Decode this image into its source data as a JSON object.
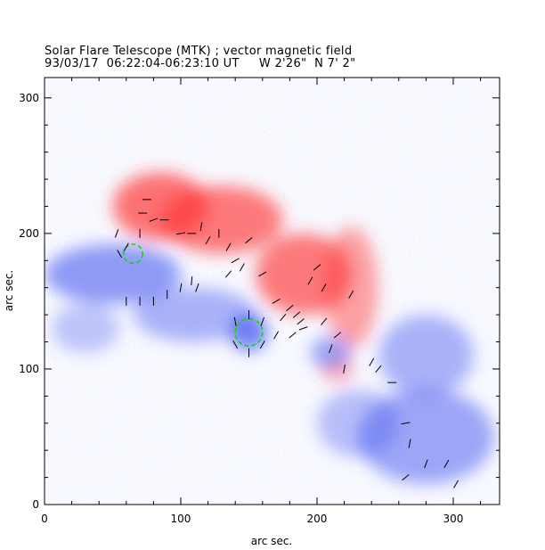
{
  "title": "Solar Flare Telescope (MTK) ; vector magnetic field",
  "subtitle": "93/03/17  06:22:04-06:23:10 UT     W 2'26\"  N 7' 2\"",
  "chart_data": {
    "type": "heatmap",
    "title": "Solar Flare Telescope (MTK) ; vector magnetic field",
    "xlabel": "arc sec.",
    "ylabel": "arc sec.",
    "xlim": [
      0,
      334
    ],
    "ylim": [
      0,
      315
    ],
    "xticks": [
      "0",
      "100",
      "200",
      "300"
    ],
    "yticks": [
      "0",
      "100",
      "200",
      "300"
    ],
    "colors": {
      "positive": "#ff3030",
      "negative": "#4a5cf0",
      "neutral_line": "#00e000",
      "vectors": "#000000"
    },
    "regions": [
      {
        "polarity": "positive",
        "cx": 85,
        "cy": 220,
        "rx": 35,
        "ry": 25,
        "strength": 0.9
      },
      {
        "polarity": "positive",
        "cx": 130,
        "cy": 210,
        "rx": 45,
        "ry": 25,
        "strength": 0.85
      },
      {
        "polarity": "positive",
        "cx": 190,
        "cy": 170,
        "rx": 35,
        "ry": 30,
        "strength": 0.85
      },
      {
        "polarity": "positive",
        "cx": 225,
        "cy": 160,
        "rx": 20,
        "ry": 45,
        "strength": 0.6
      },
      {
        "polarity": "positive",
        "cx": 215,
        "cy": 100,
        "rx": 12,
        "ry": 10,
        "strength": 0.5
      },
      {
        "polarity": "negative",
        "cx": 50,
        "cy": 170,
        "rx": 50,
        "ry": 22,
        "strength": 0.8
      },
      {
        "polarity": "negative",
        "cx": 110,
        "cy": 140,
        "rx": 45,
        "ry": 20,
        "strength": 0.6
      },
      {
        "polarity": "negative",
        "cx": 150,
        "cy": 127,
        "rx": 14,
        "ry": 14,
        "strength": 1.0
      },
      {
        "polarity": "negative",
        "cx": 210,
        "cy": 112,
        "rx": 15,
        "ry": 12,
        "strength": 0.7
      },
      {
        "polarity": "negative",
        "cx": 280,
        "cy": 110,
        "rx": 35,
        "ry": 30,
        "strength": 0.6
      },
      {
        "polarity": "negative",
        "cx": 280,
        "cy": 50,
        "rx": 50,
        "ry": 35,
        "strength": 0.7
      },
      {
        "polarity": "negative",
        "cx": 230,
        "cy": 60,
        "rx": 30,
        "ry": 25,
        "strength": 0.5
      },
      {
        "polarity": "negative",
        "cx": 30,
        "cy": 130,
        "rx": 25,
        "ry": 18,
        "strength": 0.45
      }
    ],
    "contours": [
      {
        "cx": 150,
        "cy": 127,
        "r": 10
      },
      {
        "cx": 65,
        "cy": 185,
        "r": 7
      }
    ],
    "vectors": [
      [
        53,
        200,
        70
      ],
      [
        55,
        185,
        120
      ],
      [
        60,
        190,
        60
      ],
      [
        70,
        200,
        90
      ],
      [
        72,
        215,
        0
      ],
      [
        75,
        225,
        0
      ],
      [
        80,
        210,
        20
      ],
      [
        88,
        210,
        0
      ],
      [
        100,
        200,
        10
      ],
      [
        108,
        200,
        0
      ],
      [
        115,
        205,
        80
      ],
      [
        120,
        195,
        60
      ],
      [
        128,
        200,
        90
      ],
      [
        135,
        190,
        60
      ],
      [
        140,
        180,
        30
      ],
      [
        150,
        195,
        40
      ],
      [
        135,
        170,
        50
      ],
      [
        145,
        175,
        60
      ],
      [
        160,
        170,
        30
      ],
      [
        170,
        150,
        30
      ],
      [
        180,
        145,
        40
      ],
      [
        185,
        140,
        40
      ],
      [
        195,
        165,
        60
      ],
      [
        200,
        175,
        40
      ],
      [
        205,
        160,
        60
      ],
      [
        190,
        130,
        20
      ],
      [
        225,
        155,
        60
      ],
      [
        210,
        115,
        70
      ],
      [
        220,
        100,
        80
      ],
      [
        240,
        105,
        60
      ],
      [
        245,
        100,
        50
      ],
      [
        255,
        90,
        0
      ],
      [
        268,
        45,
        80
      ],
      [
        280,
        30,
        70
      ],
      [
        295,
        30,
        60
      ],
      [
        302,
        15,
        60
      ],
      [
        60,
        150,
        90
      ],
      [
        70,
        150,
        90
      ],
      [
        80,
        150,
        90
      ],
      [
        90,
        155,
        90
      ],
      [
        100,
        160,
        80
      ],
      [
        108,
        165,
        85
      ],
      [
        112,
        160,
        70
      ],
      [
        140,
        135,
        100
      ],
      [
        150,
        140,
        90
      ],
      [
        160,
        135,
        70
      ],
      [
        170,
        125,
        60
      ],
      [
        175,
        138,
        50
      ],
      [
        182,
        125,
        40
      ],
      [
        188,
        135,
        40
      ],
      [
        140,
        118,
        120
      ],
      [
        150,
        112,
        90
      ],
      [
        160,
        118,
        60
      ],
      [
        205,
        135,
        50
      ],
      [
        215,
        125,
        40
      ],
      [
        265,
        60,
        10
      ],
      [
        265,
        20,
        40
      ]
    ]
  }
}
